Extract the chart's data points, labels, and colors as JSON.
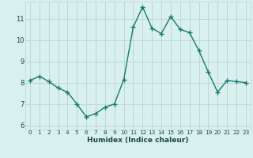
{
  "x": [
    0,
    1,
    2,
    3,
    4,
    5,
    6,
    7,
    8,
    9,
    10,
    11,
    12,
    13,
    14,
    15,
    16,
    17,
    18,
    19,
    20,
    21,
    22,
    23
  ],
  "y": [
    8.1,
    8.3,
    8.05,
    7.75,
    7.55,
    7.0,
    6.4,
    6.55,
    6.85,
    7.0,
    8.15,
    10.6,
    11.55,
    10.55,
    10.3,
    11.1,
    10.5,
    10.35,
    9.5,
    8.5,
    7.55,
    8.1,
    8.05,
    8.0
  ],
  "xlim": [
    -0.5,
    23.5
  ],
  "ylim": [
    5.8,
    11.8
  ],
  "yticks": [
    6,
    7,
    8,
    9,
    10,
    11
  ],
  "xticks": [
    0,
    1,
    2,
    3,
    4,
    5,
    6,
    7,
    8,
    9,
    10,
    11,
    12,
    13,
    14,
    15,
    16,
    17,
    18,
    19,
    20,
    21,
    22,
    23
  ],
  "xlabel": "Humidex (Indice chaleur)",
  "line_color": "#1a7a6e",
  "marker": "+",
  "marker_size": 4,
  "marker_lw": 1.0,
  "line_width": 1.0,
  "bg_color": "#d8f0ee",
  "grid_color": "#c0d8d4",
  "tick_color": "#1a4a44",
  "label_color": "#1a4a44"
}
